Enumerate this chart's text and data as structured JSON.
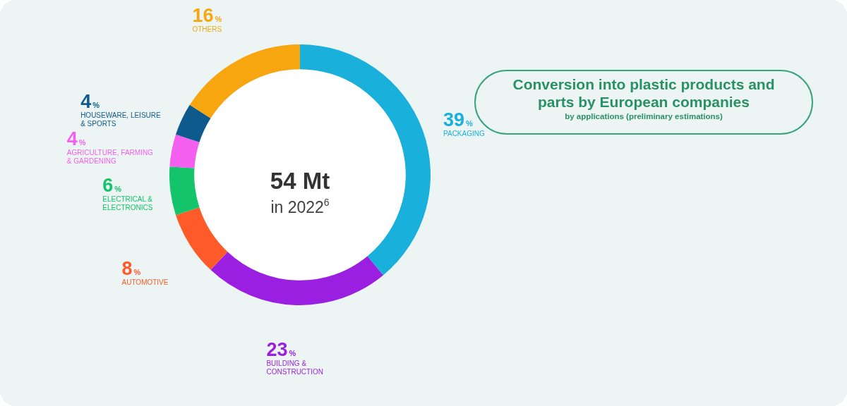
{
  "chart_data": {
    "type": "donut",
    "title": "Conversion into plastic products and parts by European companies",
    "subtitle": "by applications (preliminary estimations)",
    "categories": [
      "PACKAGING",
      "BUILDING & CONSTRUCTION",
      "AUTOMOTIVE",
      "ELECTRICAL & ELECTRONICS",
      "AGRICULTURE, FARMING & GARDENING",
      "HOUSEWARE, LEISURE & SPORTS",
      "OTHERS"
    ],
    "values": [
      39,
      23,
      8,
      6,
      4,
      4,
      16
    ],
    "colors": [
      "#1ab0dc",
      "#9b1fe0",
      "#ff5a2a",
      "#13c46a",
      "#f55fef",
      "#0f5a8c",
      "#f7a610"
    ],
    "value_labels": [
      "39%",
      "23%",
      "8%",
      "6%",
      "4%",
      "4%",
      "16%"
    ],
    "annotations": [
      "54 Mt",
      "in 2022$^{6}$"
    ],
    "legend": false
  }
}
